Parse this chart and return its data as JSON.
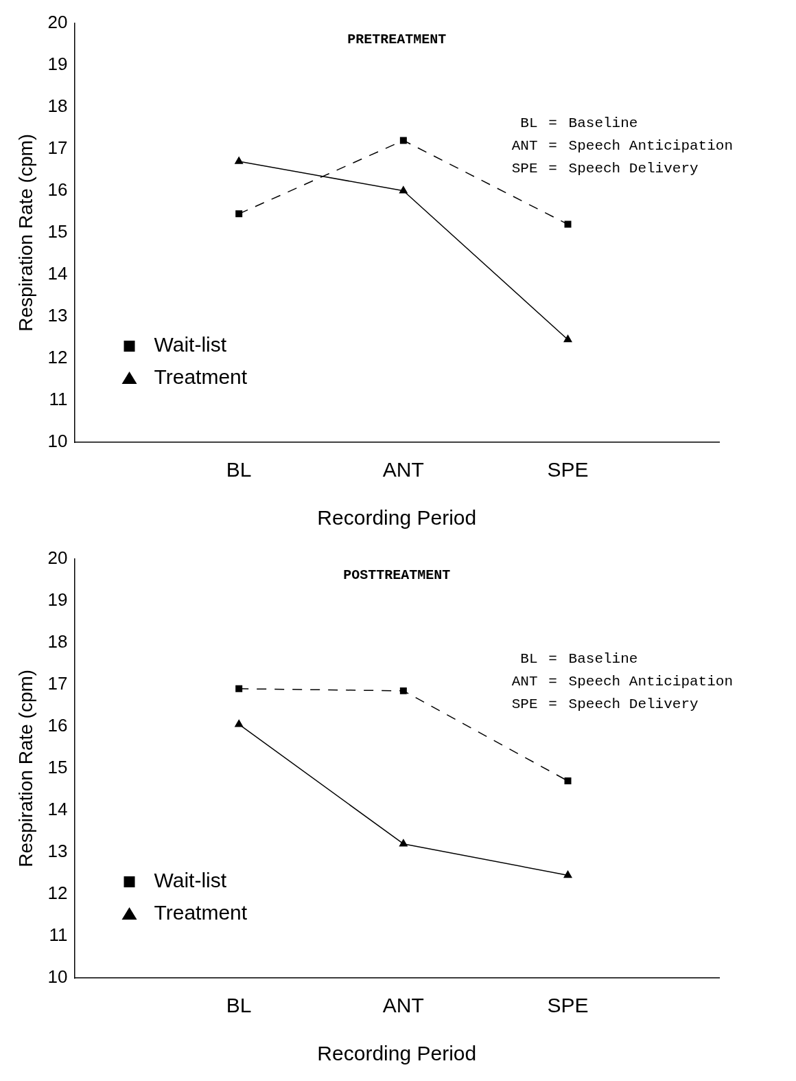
{
  "chart_data": [
    {
      "type": "line",
      "title": "PRETREATMENT",
      "xlabel": "Recording Period",
      "ylabel": "Respiration Rate (cpm)",
      "categories": [
        "BL",
        "ANT",
        "SPE"
      ],
      "ylim": [
        10,
        20
      ],
      "yticks": [
        10,
        11,
        12,
        13,
        14,
        15,
        16,
        17,
        18,
        19,
        20
      ],
      "grid": false,
      "legend": "bottom left",
      "annotations": [
        "BL = Baseline",
        "ANT = Speech Anticipation",
        "SPE = Speech Delivery"
      ],
      "series": [
        {
          "name": "Wait-list",
          "color": "#000000",
          "values": [
            15.45,
            17.2,
            15.2
          ],
          "marker": "square",
          "line_style": "dashed"
        },
        {
          "name": "Treatment",
          "color": "#000000",
          "values": [
            16.7,
            16.0,
            12.45
          ],
          "marker": "triangle",
          "line_style": "solid"
        }
      ]
    },
    {
      "type": "line",
      "title": "POSTTREATMENT",
      "xlabel": "Recording Period",
      "ylabel": "Respiration Rate (cpm)",
      "categories": [
        "BL",
        "ANT",
        "SPE"
      ],
      "ylim": [
        10,
        20
      ],
      "yticks": [
        10,
        11,
        12,
        13,
        14,
        15,
        16,
        17,
        18,
        19,
        20
      ],
      "grid": false,
      "legend": "bottom left",
      "annotations": [
        "BL = Baseline",
        "ANT = Speech Anticipation",
        "SPE = Speech Delivery"
      ],
      "series": [
        {
          "name": "Wait-list",
          "color": "#000000",
          "values": [
            16.9,
            16.85,
            14.7
          ],
          "marker": "square",
          "line_style": "dashed"
        },
        {
          "name": "Treatment",
          "color": "#000000",
          "values": [
            16.05,
            13.2,
            12.45
          ],
          "marker": "triangle",
          "line_style": "solid"
        }
      ]
    }
  ]
}
